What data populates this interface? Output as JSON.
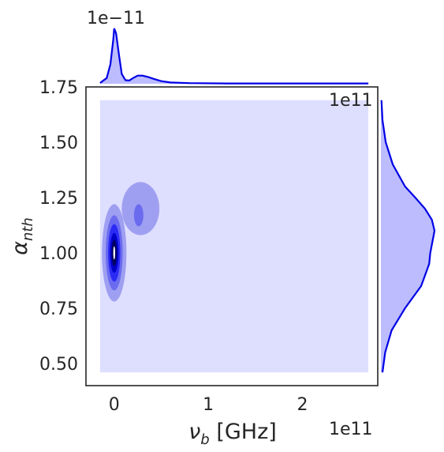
{
  "chart_data": {
    "type": "heatmap",
    "subtype": "joint-kde",
    "xlabel": "ν_b [GHz]",
    "ylabel": "α_nth",
    "x_scale_text": "1e11",
    "y_marginal_scale_text": "1e11",
    "x_marginal_scale_text": "1e−11",
    "xlim": [
      -30000000000.0,
      280000000000.0
    ],
    "ylim": [
      0.4,
      1.75
    ],
    "x_ticks": [
      0,
      100000000000.0,
      200000000000.0
    ],
    "x_tick_labels": [
      "0",
      "1",
      "2"
    ],
    "y_ticks": [
      0.5,
      0.75,
      1.0,
      1.25,
      1.5,
      1.75
    ],
    "y_tick_labels": [
      "0.50",
      "0.75",
      "1.00",
      "1.25",
      "1.50",
      "1.75"
    ],
    "background_region": {
      "x": [
        -15000000000.0,
        270000000000.0
      ],
      "y": [
        0.46,
        1.69
      ]
    },
    "contour_levels": [
      {
        "level": 1,
        "color": "#9f9ff2",
        "blobs": [
          {
            "cx": 0.0,
            "cy": 1.0,
            "rx": 13000000000.0,
            "ry": 0.22
          },
          {
            "cx": 28000000000.0,
            "cy": 1.2,
            "rx": 20000000000.0,
            "ry": 0.12
          }
        ]
      },
      {
        "level": 2,
        "color": "#6b6bf0",
        "blobs": [
          {
            "cx": 0.0,
            "cy": 1.0,
            "rx": 9000000000.0,
            "ry": 0.17
          },
          {
            "cx": 26000000000.0,
            "cy": 1.17,
            "rx": 5000000000.0,
            "ry": 0.05
          }
        ]
      },
      {
        "level": 3,
        "color": "#2b2bf5",
        "blobs": [
          {
            "cx": 0.0,
            "cy": 1.0,
            "rx": 6500000000.0,
            "ry": 0.13
          }
        ]
      },
      {
        "level": 4,
        "color": "#0000c8",
        "blobs": [
          {
            "cx": 0.0,
            "cy": 1.0,
            "rx": 4500000000.0,
            "ry": 0.09
          }
        ]
      },
      {
        "level": 5,
        "color": "#000060",
        "blobs": [
          {
            "cx": 0.0,
            "cy": 1.0,
            "rx": 2800000000.0,
            "ry": 0.06
          }
        ]
      },
      {
        "level": 6,
        "color": "#ffffff",
        "blobs": [
          {
            "cx": 0.0,
            "cy": 1.0,
            "rx": 1000000000.0,
            "ry": 0.03
          }
        ]
      }
    ],
    "x_marginal": {
      "x": [
        -15000000000.0,
        -8000000000.0,
        -4000000000.0,
        -1000000000.0,
        0.0,
        2000000000.0,
        5000000000.0,
        8000000000.0,
        12000000000.0,
        16000000000.0,
        20000000000.0,
        25000000000.0,
        30000000000.0,
        36000000000.0,
        42000000000.0,
        50000000000.0,
        60000000000.0,
        80000000000.0,
        120000000000.0,
        200000000000.0,
        270000000000.0
      ],
      "density": [
        0.05,
        0.35,
        1.2,
        2.7,
        3.4,
        3.1,
        1.8,
        0.6,
        0.22,
        0.2,
        0.35,
        0.5,
        0.5,
        0.42,
        0.3,
        0.16,
        0.08,
        0.04,
        0.02,
        0.02,
        0.02
      ]
    },
    "y_marginal": {
      "y": [
        0.46,
        0.55,
        0.65,
        0.75,
        0.85,
        0.95,
        1.0,
        1.05,
        1.1,
        1.15,
        1.2,
        1.25,
        1.3,
        1.4,
        1.5,
        1.6,
        1.69
      ],
      "density": [
        0.03,
        0.08,
        0.2,
        0.45,
        0.75,
        0.9,
        0.92,
        0.96,
        1.0,
        0.95,
        0.82,
        0.64,
        0.45,
        0.22,
        0.09,
        0.03,
        0.01
      ]
    },
    "colors": {
      "background_fill": "#dedeff",
      "marginal_line": "#0000e6",
      "marginal_fill": "#bcbcff",
      "axes": "#262626"
    },
    "grid": false,
    "legend": "none"
  }
}
